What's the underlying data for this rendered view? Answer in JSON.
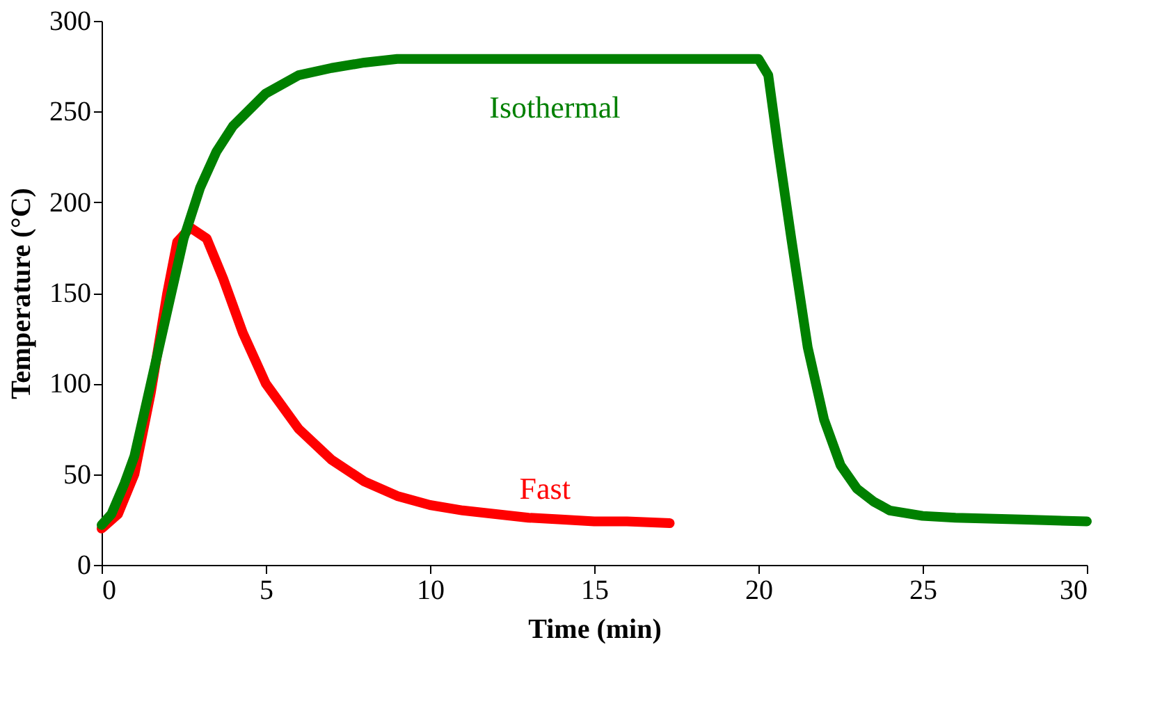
{
  "chart_data": {
    "type": "line",
    "xlabel": "Time (min)",
    "ylabel": "Temperature (°C)",
    "xlim": [
      0,
      30
    ],
    "xticks": [
      0,
      5,
      10,
      15,
      20,
      25,
      30
    ],
    "ylim": [
      0,
      300
    ],
    "yticks": [
      0,
      50,
      100,
      150,
      200,
      250,
      300
    ],
    "grid": false,
    "legend": false,
    "marker": "none",
    "line_style": "solid",
    "series": [
      {
        "name": "Fast",
        "color": "#ff0000",
        "x": [
          0,
          0.5,
          1,
          1.5,
          2,
          2.3,
          2.7,
          3.2,
          3.7,
          4.3,
          5,
          6,
          7,
          8,
          9,
          10,
          11,
          12,
          13,
          14,
          15,
          16,
          17.3
        ],
        "values": [
          20,
          28,
          50,
          95,
          150,
          178,
          186,
          180,
          158,
          128,
          100,
          75,
          58,
          46,
          38,
          33,
          30,
          28,
          26,
          25,
          24,
          24,
          23
        ]
      },
      {
        "name": "Isothermal",
        "color": "#008000",
        "x": [
          0,
          0.3,
          0.7,
          1,
          1.5,
          2,
          2.5,
          3,
          3.5,
          4,
          5,
          6,
          7,
          8,
          9,
          10,
          15,
          20,
          20.3,
          20.6,
          21,
          21.5,
          22,
          22.5,
          23,
          23.5,
          24,
          25,
          26,
          28,
          30
        ],
        "values": [
          22,
          28,
          45,
          60,
          100,
          140,
          180,
          208,
          228,
          242,
          260,
          270,
          274,
          277,
          279,
          279,
          279,
          279,
          270,
          230,
          180,
          120,
          80,
          55,
          42,
          35,
          30,
          27,
          26,
          25,
          24
        ]
      }
    ]
  }
}
